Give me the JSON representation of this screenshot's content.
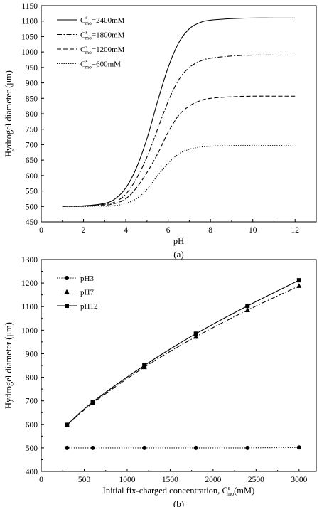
{
  "chart_data": [
    {
      "type": "line",
      "panel_label": "(a)",
      "xlabel": "pH",
      "ylabel": "Hydrogel diameter (μm)",
      "xlim": [
        0,
        13
      ],
      "ylim": [
        450,
        1150
      ],
      "xticks": [
        0,
        2,
        4,
        6,
        8,
        10,
        12
      ],
      "yticks": [
        450,
        500,
        550,
        600,
        650,
        700,
        750,
        800,
        850,
        900,
        950,
        1000,
        1050,
        1100,
        1150
      ],
      "legend_position": "top-left",
      "series": [
        {
          "name": "Cˢmo=2400mM",
          "legend": {
            "c": "C",
            "sup": "s",
            "sub": "mo",
            "rest": "=2400mM"
          },
          "dash": "solid",
          "x": [
            1,
            2,
            3,
            3.5,
            4,
            4.5,
            5,
            5.5,
            6,
            6.5,
            7,
            7.5,
            8,
            9,
            10,
            11,
            12
          ],
          "y": [
            501,
            502,
            510,
            525,
            560,
            625,
            720,
            840,
            950,
            1030,
            1075,
            1095,
            1103,
            1108,
            1110,
            1110,
            1110
          ]
        },
        {
          "name": "Cˢmo=1800mM",
          "legend": {
            "c": "C",
            "sup": "s",
            "sub": "mo",
            "rest": "=1800mM"
          },
          "dash": "dashdot",
          "x": [
            1,
            2,
            3,
            3.5,
            4,
            4.5,
            5,
            5.5,
            6,
            6.5,
            7,
            7.5,
            8,
            9,
            10,
            11,
            12
          ],
          "y": [
            501,
            502,
            507,
            515,
            540,
            590,
            660,
            750,
            840,
            910,
            950,
            970,
            980,
            987,
            990,
            990,
            990
          ]
        },
        {
          "name": "Cˢmo=1200mM",
          "legend": {
            "c": "C",
            "sup": "s",
            "sub": "mo",
            "rest": "=1200mM"
          },
          "dash": "dashed",
          "x": [
            1,
            2,
            3,
            3.5,
            4,
            4.5,
            5,
            5.5,
            6,
            6.5,
            7,
            7.5,
            8,
            9,
            10,
            11,
            12
          ],
          "y": [
            500,
            501,
            504,
            510,
            525,
            560,
            610,
            670,
            740,
            795,
            825,
            842,
            850,
            855,
            857,
            857,
            857
          ]
        },
        {
          "name": "Cˢmo=600mM",
          "legend": {
            "c": "C",
            "sup": "s",
            "sub": "mo",
            "rest": "=600mM"
          },
          "dash": "dotted",
          "x": [
            1,
            2,
            3,
            3.5,
            4,
            4.5,
            5,
            5.5,
            6,
            6.5,
            7,
            7.5,
            8,
            9,
            10,
            11,
            12
          ],
          "y": [
            500,
            500,
            501,
            503,
            510,
            525,
            555,
            600,
            640,
            670,
            685,
            692,
            695,
            697,
            697,
            697,
            697
          ]
        }
      ]
    },
    {
      "type": "line",
      "panel_label": "(b)",
      "xlabel_prefix": "Initial fix-charged concentration, ",
      "xlabel_c": "C",
      "xlabel_sup": "s",
      "xlabel_sub": "mo",
      "xlabel_suffix": "(mM)",
      "ylabel": "Hydrogel diameter (μm)",
      "xlim": [
        0,
        3200
      ],
      "ylim": [
        400,
        1300
      ],
      "xticks": [
        0,
        500,
        1000,
        1500,
        2000,
        2500,
        3000
      ],
      "yticks": [
        400,
        500,
        600,
        700,
        800,
        900,
        1000,
        1100,
        1200,
        1300
      ],
      "legend_position": "top-left",
      "series": [
        {
          "name": "pH3",
          "dash": "dotted",
          "marker": "circle",
          "x": [
            300,
            600,
            1200,
            1800,
            2400,
            3000
          ],
          "y": [
            500,
            500,
            500,
            500,
            500,
            502
          ]
        },
        {
          "name": "pH7",
          "dash": "dashdot",
          "marker": "triangle",
          "x": [
            300,
            600,
            1200,
            1800,
            2400,
            3000
          ],
          "y": [
            597,
            690,
            843,
            972,
            1085,
            1188
          ]
        },
        {
          "name": "pH12",
          "dash": "solid",
          "marker": "square",
          "x": [
            300,
            600,
            1200,
            1800,
            2400,
            3000
          ],
          "y": [
            598,
            695,
            850,
            985,
            1103,
            1212
          ]
        }
      ]
    }
  ]
}
